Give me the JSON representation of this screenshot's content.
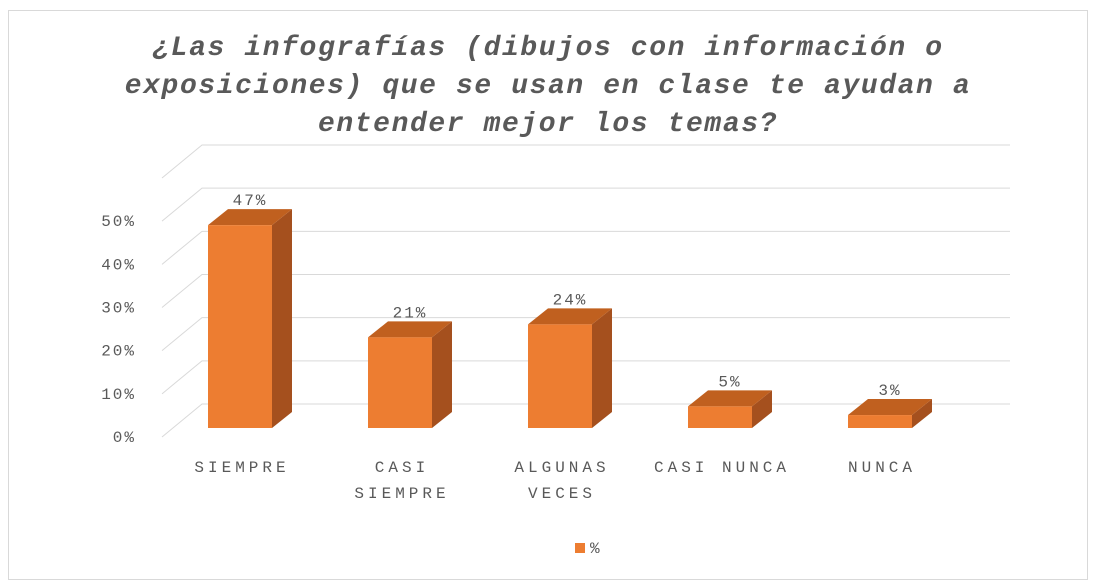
{
  "chart_data": {
    "type": "bar3d",
    "title": "¿Las infografías (dibujos con información o exposiciones) que se usan en clase te ayudan a entender mejor los temas?",
    "categories": [
      "SIEMPRE",
      "CASI SIEMPRE",
      "ALGUNAS VECES",
      "CASI NUNCA",
      "NUNCA"
    ],
    "series": [
      {
        "name": "%",
        "color": "#ed7d31",
        "values": [
          47,
          21,
          24,
          5,
          3
        ],
        "value_labels": [
          "47%",
          "21%",
          "24%",
          "5%",
          "3%"
        ]
      }
    ],
    "ylim": [
      0,
      60
    ],
    "yticks": [
      {
        "value": 0,
        "label": "0%"
      },
      {
        "value": 10,
        "label": "10%"
      },
      {
        "value": 20,
        "label": "20%"
      },
      {
        "value": 30,
        "label": "30%"
      },
      {
        "value": 40,
        "label": "40%"
      },
      {
        "value": 50,
        "label": "50%"
      }
    ],
    "grid": true,
    "legend": "bottom"
  }
}
